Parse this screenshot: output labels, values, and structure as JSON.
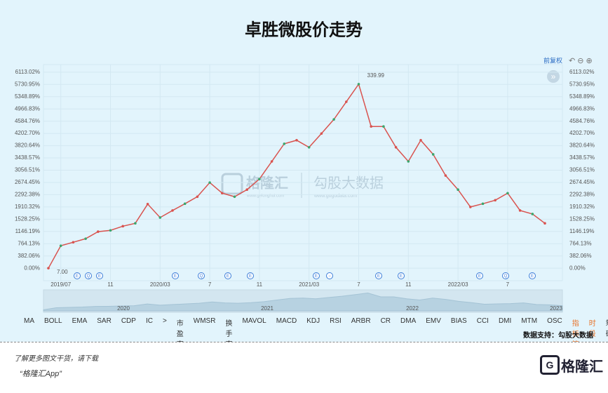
{
  "title": "卓胜微股价走势",
  "chart_data": {
    "type": "line",
    "categories": [
      null,
      "2019/07",
      null,
      null,
      null,
      "11",
      null,
      null,
      null,
      "2020/03",
      null,
      null,
      null,
      "7",
      null,
      null,
      null,
      "11",
      null,
      null,
      null,
      "2021/03",
      null,
      null,
      null,
      "7",
      null,
      null,
      null,
      "11",
      null,
      null,
      null,
      "2022/03",
      null,
      null,
      null,
      "7",
      null,
      null,
      null
    ],
    "values": [
      0,
      700,
      810,
      920,
      1140,
      1180,
      1310,
      1400,
      2000,
      1580,
      1800,
      2010,
      2230,
      2670,
      2340,
      2230,
      2450,
      2780,
      3330,
      3880,
      3990,
      3770,
      4200,
      4640,
      5190,
      5740,
      4420,
      4420,
      3770,
      3330,
      3990,
      3550,
      2890,
      2450,
      1910,
      2010,
      2120,
      2340,
      1800,
      1690,
      1400
    ],
    "color": "#d9534f",
    "ylim": [
      -390,
      6350
    ],
    "yticks": [
      {
        "value": 0,
        "label": "0.00%"
      },
      {
        "value": 382.06,
        "label": "382.06%"
      },
      {
        "value": 764.13,
        "label": "764.13%"
      },
      {
        "value": 1146.19,
        "label": "1146.19%"
      },
      {
        "value": 1528.25,
        "label": "1528.25%"
      },
      {
        "value": 1910.32,
        "label": "1910.32%"
      },
      {
        "value": 2292.38,
        "label": "2292.38%"
      },
      {
        "value": 2674.45,
        "label": "2674.45%"
      },
      {
        "value": 3056.51,
        "label": "3056.51%"
      },
      {
        "value": 3438.57,
        "label": "3438.57%"
      },
      {
        "value": 3820.64,
        "label": "3820.64%"
      },
      {
        "value": 4202.7,
        "label": "4202.70%"
      },
      {
        "value": 4584.76,
        "label": "4584.76%"
      },
      {
        "value": 4966.83,
        "label": "4966.83%"
      },
      {
        "value": 5348.89,
        "label": "5348.89%"
      },
      {
        "value": 5730.95,
        "label": "5730.95%"
      },
      {
        "value": 6113.02,
        "label": "6113.02%"
      }
    ],
    "grid": true,
    "annotations": {
      "peak": "339.99",
      "start": "7.00"
    },
    "event_markers": [
      "E",
      "Q",
      "E",
      "E",
      "Q",
      "E",
      "E",
      "E",
      "−",
      "E",
      "E",
      "E",
      "Q",
      "E"
    ],
    "navigator_years": [
      "2020",
      "2021",
      "2022",
      "2023"
    ]
  },
  "controls": {
    "adjust": "前复权",
    "expand": "»",
    "indicators": [
      "MA",
      "BOLL",
      "EMA",
      "SAR",
      "CDP",
      "IC",
      ">",
      "市盈率",
      "WMSR",
      "换手率",
      "MAVOL",
      "MACD",
      "KDJ",
      "RSI",
      "ARBR",
      "CR",
      "DMA",
      "EMV",
      "BIAS",
      "CCI",
      "DMI",
      "MTM",
      "OSC"
    ],
    "manage": "指标管理",
    "period": "时段",
    "chips": "筹码"
  },
  "source": "数据支持：勾股大数据",
  "watermarks": {
    "brand": "格隆汇",
    "brand_url": "www.gelonghui.com",
    "data": "勾股大数据",
    "data_url": "www.gogudata.com"
  },
  "footer": {
    "prompt": "了解更多图文干货，请下载",
    "app": "“格隆汇App”",
    "logo": "格隆汇",
    "logo_letter": "G"
  }
}
